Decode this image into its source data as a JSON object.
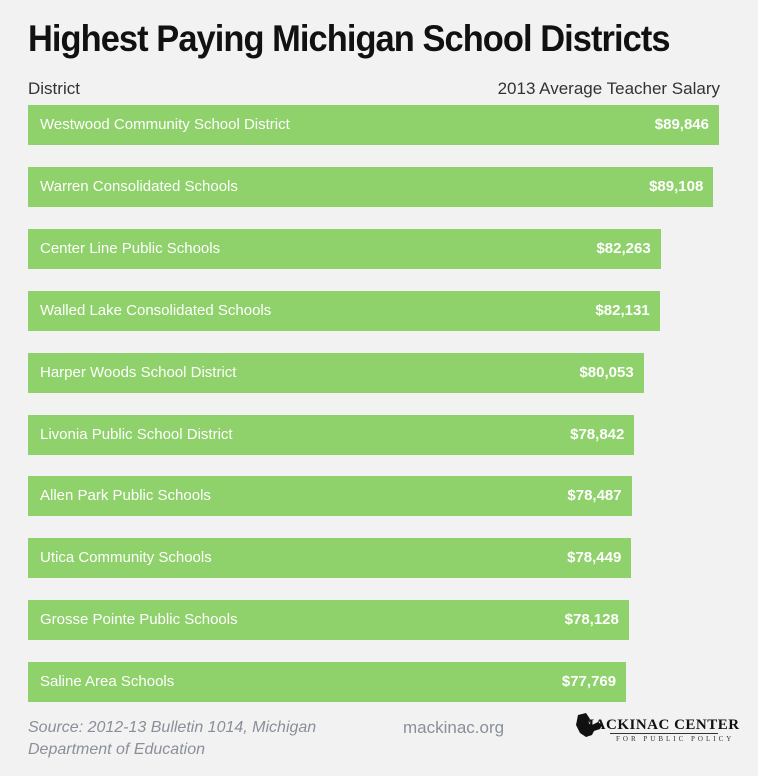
{
  "title": "Highest Paying Michigan School Districts",
  "header": {
    "left": "District",
    "right": "2013 Average Teacher Salary"
  },
  "footer": {
    "source_line1": "Source: 2012-13 Bulletin 1014, Michigan",
    "source_line2": "Department of Education",
    "site": "mackinac.org",
    "logo_main": "MACKINAC CENTER",
    "logo_sub": "FOR PUBLIC POLICY"
  },
  "colors": {
    "bar": "#8fd16a",
    "background": "#f2f2f2"
  },
  "chart_data": {
    "type": "bar",
    "orientation": "horizontal",
    "title": "Highest Paying Michigan School Districts",
    "xlabel": "2013 Average Teacher Salary",
    "ylabel": "District",
    "categories": [
      "Westwood Community School District",
      "Warren Consolidated Schools",
      "Center Line Public Schools",
      "Walled Lake Consolidated Schools",
      "Harper Woods School District",
      "Livonia Public School District",
      "Allen Park Public Schools",
      "Utica Community Schools",
      "Grosse Pointe Public Schools",
      "Saline Area Schools"
    ],
    "values": [
      89846,
      89108,
      82263,
      82131,
      80053,
      78842,
      78487,
      78449,
      78128,
      77769
    ],
    "value_labels": [
      "$89,846",
      "$89,108",
      "$82,263",
      "$82,131",
      "$80,053",
      "$78,842",
      "$78,487",
      "$78,449",
      "$78,128",
      "$77,769"
    ],
    "xlim": [
      0,
      89846
    ]
  }
}
